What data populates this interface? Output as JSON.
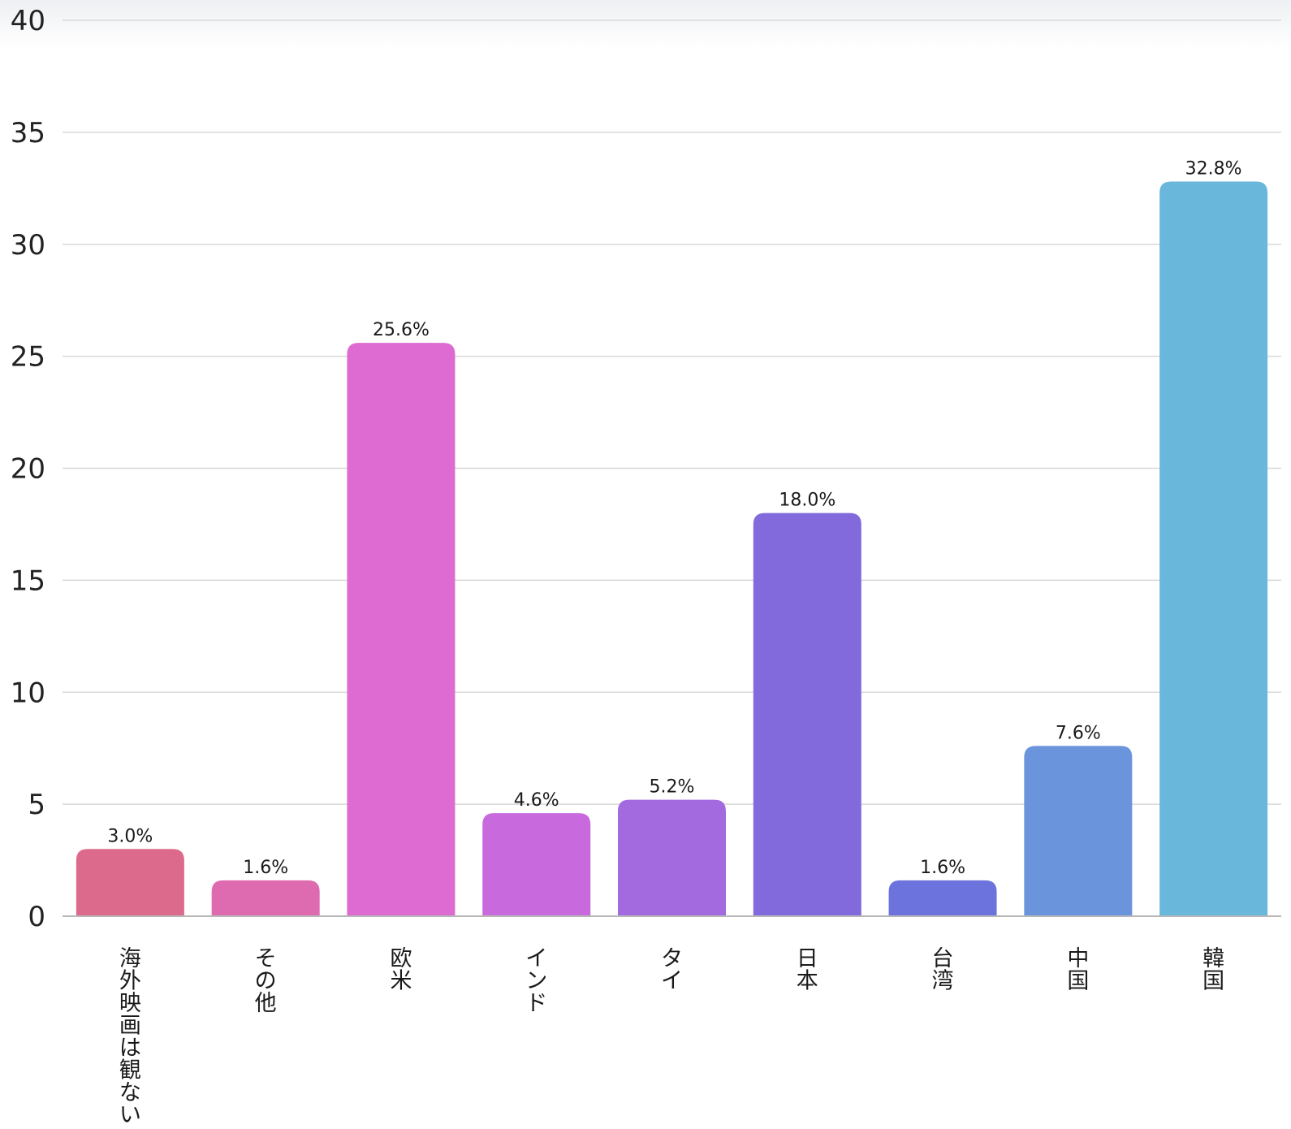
{
  "chart_data": {
    "type": "bar",
    "title": "",
    "xlabel": "",
    "ylabel": "",
    "ylim": [
      0,
      40
    ],
    "yticks": [
      "0",
      "5",
      "10",
      "15",
      "20",
      "25",
      "30",
      "35",
      "40"
    ],
    "grid": true,
    "categories": [
      "海外映画は観ない",
      "その他",
      "欧米",
      "インド",
      "タイ",
      "日本",
      "台湾",
      "中国",
      "韓国"
    ],
    "values": [
      3.0,
      1.6,
      25.6,
      4.6,
      5.2,
      18.0,
      1.6,
      7.6,
      32.8
    ],
    "value_labels": [
      "3.0%",
      "1.6%",
      "25.6%",
      "4.6%",
      "5.2%",
      "18.0%",
      "1.6%",
      "7.6%",
      "32.8%"
    ],
    "colors": [
      "#dc6a8c",
      "#de6bb0",
      "#dd6bd1",
      "#c86ade",
      "#a369df",
      "#826adc",
      "#6d73dc",
      "#6a94dc",
      "#6ab7dc"
    ]
  }
}
